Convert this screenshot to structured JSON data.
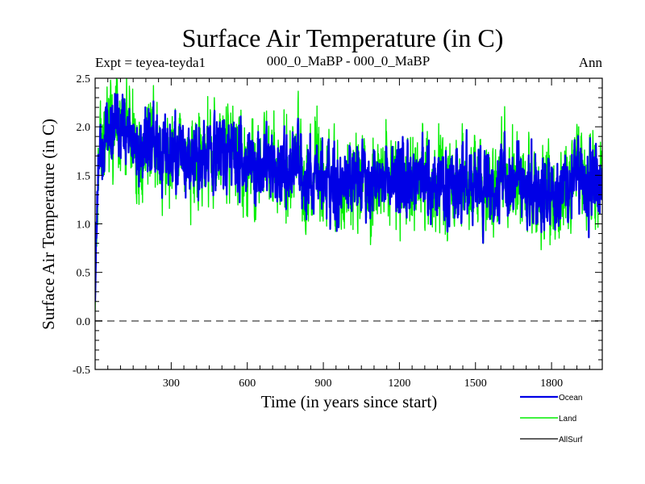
{
  "chart_data": {
    "type": "line",
    "title": "Surface Air Temperature (in C)",
    "subtitle_left": "Expt = teyea-teyda1",
    "subtitle_center": "000_0_MaBP - 000_0_MaBP",
    "subtitle_right": "Ann",
    "xlabel": "Time (in years since start)",
    "ylabel": "Surface Air Temperature (in C)",
    "xlim": [
      0,
      2000
    ],
    "ylim": [
      -0.5,
      2.5
    ],
    "xticks": [
      300,
      600,
      900,
      1200,
      1500,
      1800
    ],
    "xtick_labels": [
      "300",
      "600",
      "900",
      "1200",
      "1500",
      "1800"
    ],
    "yticks": [
      -0.5,
      0.0,
      0.5,
      1.0,
      1.5,
      2.0,
      2.5
    ],
    "ytick_labels": [
      "-0.5",
      "0.0",
      "0.5",
      "1.0",
      "1.5",
      "2.0",
      "2.5"
    ],
    "reference_line": {
      "y": 0.0,
      "style": "dashed",
      "color": "#808080"
    },
    "series": [
      {
        "name": "Land",
        "color": "#00ee00",
        "x": [
          0,
          5,
          15,
          30,
          50,
          75,
          100,
          130,
          160,
          200,
          250,
          300,
          350,
          400,
          450,
          500,
          550,
          600,
          650,
          700,
          750,
          800,
          850,
          900,
          950,
          1000,
          1050,
          1100,
          1150,
          1200,
          1250,
          1300,
          1350,
          1400,
          1450,
          1500,
          1550,
          1600,
          1650,
          1700,
          1750,
          1800,
          1850,
          1900,
          1950,
          2000
        ],
        "values": [
          0.1,
          0.9,
          1.6,
          1.85,
          1.9,
          1.95,
          1.95,
          1.9,
          1.88,
          1.82,
          1.75,
          1.72,
          1.68,
          1.65,
          1.72,
          1.78,
          1.62,
          1.55,
          1.58,
          1.6,
          1.55,
          1.55,
          1.52,
          1.48,
          1.45,
          1.5,
          1.52,
          1.48,
          1.45,
          1.42,
          1.45,
          1.48,
          1.42,
          1.38,
          1.4,
          1.42,
          1.38,
          1.4,
          1.45,
          1.42,
          1.38,
          1.36,
          1.38,
          1.42,
          1.4,
          1.42
        ],
        "noise_amplitude": 0.32,
        "line_width": 1.4
      },
      {
        "name": "Ocean",
        "color": "#0000e6",
        "x": [
          0,
          5,
          15,
          30,
          50,
          75,
          100,
          130,
          160,
          200,
          250,
          300,
          350,
          400,
          450,
          500,
          550,
          600,
          650,
          700,
          750,
          800,
          850,
          900,
          950,
          1000,
          1050,
          1100,
          1150,
          1200,
          1250,
          1300,
          1350,
          1400,
          1450,
          1500,
          1550,
          1600,
          1650,
          1700,
          1750,
          1800,
          1850,
          1900,
          1950,
          2000
        ],
        "values": [
          0.2,
          0.9,
          1.6,
          1.85,
          1.9,
          1.95,
          1.95,
          1.9,
          1.88,
          1.82,
          1.75,
          1.72,
          1.68,
          1.65,
          1.72,
          1.78,
          1.62,
          1.55,
          1.58,
          1.6,
          1.55,
          1.55,
          1.52,
          1.48,
          1.45,
          1.5,
          1.52,
          1.48,
          1.45,
          1.42,
          1.45,
          1.48,
          1.42,
          1.38,
          1.4,
          1.42,
          1.38,
          1.4,
          1.45,
          1.42,
          1.38,
          1.36,
          1.38,
          1.42,
          1.4,
          1.42
        ],
        "noise_amplitude": 0.24,
        "line_width": 2.2
      },
      {
        "name": "AllSurf",
        "color": "#000000",
        "x": [],
        "values": [],
        "line_width": 1.2
      }
    ],
    "legend_position": "bottom-right"
  }
}
